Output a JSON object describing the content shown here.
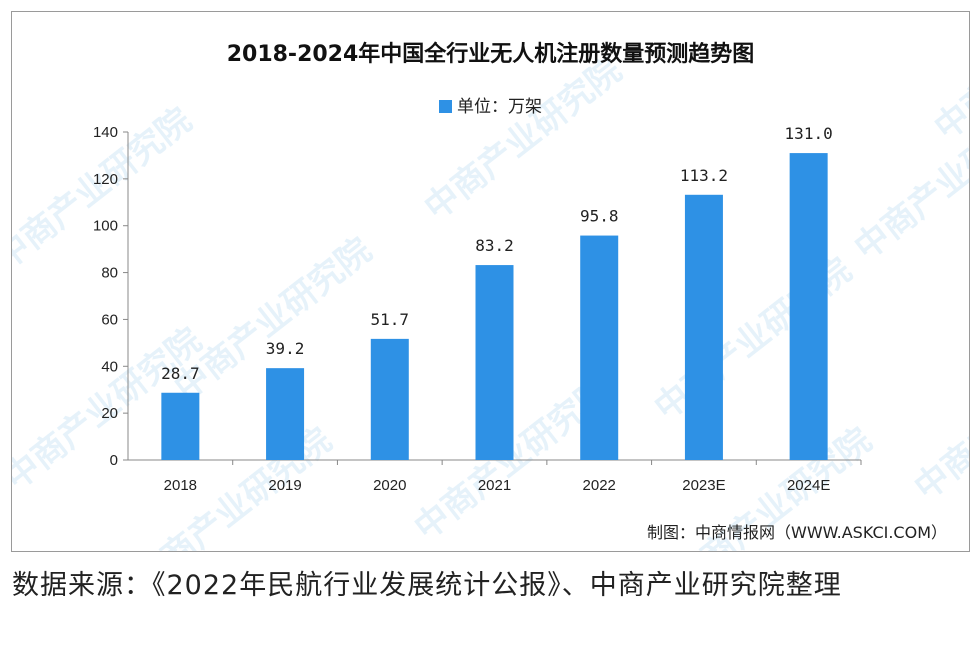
{
  "chart_data": {
    "type": "bar",
    "title": "2018-2024年中国全行业无人机注册数量预测趋势图",
    "legend_label": "单位：万架",
    "categories": [
      "2018",
      "2019",
      "2020",
      "2021",
      "2022",
      "2023E",
      "2024E"
    ],
    "values": [
      28.7,
      39.2,
      51.7,
      83.2,
      95.8,
      113.2,
      131.0
    ],
    "value_labels": [
      "28.7",
      "39.2",
      "51.7",
      "83.2",
      "95.8",
      "113.2",
      "131.0"
    ],
    "ylim": [
      0,
      140
    ],
    "yticks": [
      0,
      20,
      40,
      60,
      80,
      100,
      120,
      140
    ],
    "xlabel": "",
    "ylabel": "",
    "grid": false,
    "legend_position": "top-center",
    "bar_color": "#2e91e5"
  },
  "chart_source_note": "制图：中商情报网（WWW.ASKCI.COM）",
  "watermark_text": "中商产业研究院",
  "caption": "数据来源：《2022年民航行业发展统计公报》、中商产业研究院整理"
}
